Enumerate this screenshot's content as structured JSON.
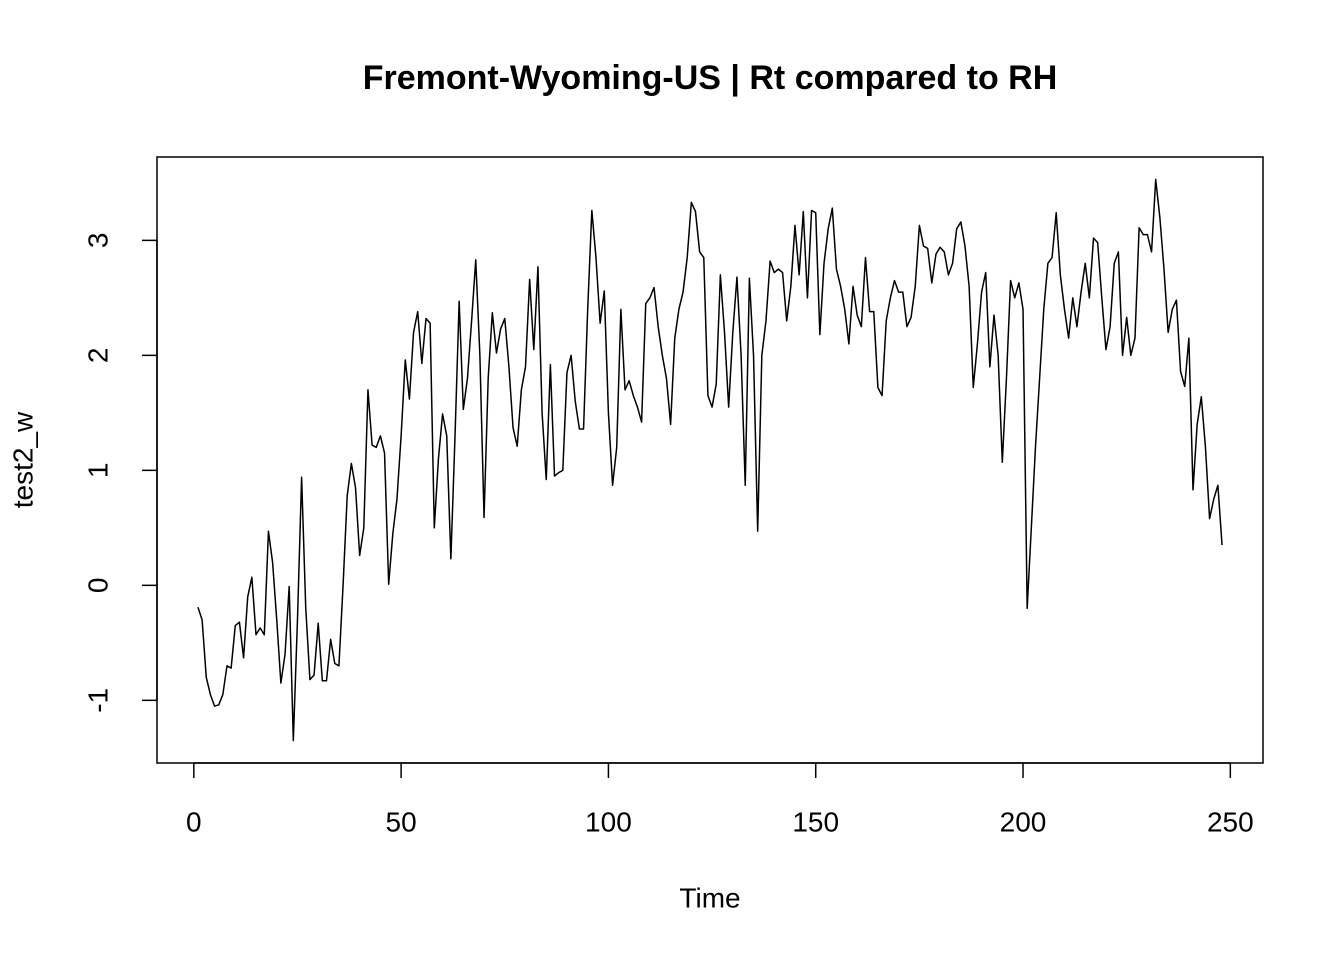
{
  "chart_data": {
    "type": "line",
    "title": "Fremont-Wyoming-US | Rt compared to RH",
    "x_label": "Time",
    "y_label": "test2_w",
    "x": [
      1,
      2,
      3,
      4,
      5,
      6,
      7,
      8,
      9,
      10,
      11,
      12,
      13,
      14,
      15,
      16,
      17,
      18,
      19,
      20,
      21,
      22,
      23,
      24,
      25,
      26,
      27,
      28,
      29,
      30,
      31,
      32,
      33,
      34,
      35,
      36,
      37,
      38,
      39,
      40,
      41,
      42,
      43,
      44,
      45,
      46,
      47,
      48,
      49,
      50,
      51,
      52,
      53,
      54,
      55,
      56,
      57,
      58,
      59,
      60,
      61,
      62,
      63,
      64,
      65,
      66,
      67,
      68,
      69,
      70,
      71,
      72,
      73,
      74,
      75,
      76,
      77,
      78,
      79,
      80,
      81,
      82,
      83,
      84,
      85,
      86,
      87,
      88,
      89,
      90,
      91,
      92,
      93,
      94,
      95,
      96,
      97,
      98,
      99,
      100,
      101,
      102,
      103,
      104,
      105,
      106,
      107,
      108,
      109,
      110,
      111,
      112,
      113,
      114,
      115,
      116,
      117,
      118,
      119,
      120,
      121,
      122,
      123,
      124,
      125,
      126,
      127,
      128,
      129,
      130,
      131,
      132,
      133,
      134,
      135,
      136,
      137,
      138,
      139,
      140,
      141,
      142,
      143,
      144,
      145,
      146,
      147,
      148,
      149,
      150,
      151,
      152,
      153,
      154,
      155,
      156,
      157,
      158,
      159,
      160,
      161,
      162,
      163,
      164,
      165,
      166,
      167,
      168,
      169,
      170,
      171,
      172,
      173,
      174,
      175,
      176,
      177,
      178,
      179,
      180,
      181,
      182,
      183,
      184,
      185,
      186,
      187,
      188,
      189,
      190,
      191,
      192,
      193,
      194,
      195,
      196,
      197,
      198,
      199,
      200,
      201,
      202,
      203,
      204,
      205,
      206,
      207,
      208,
      209,
      210,
      211,
      212,
      213,
      214,
      215,
      216,
      217,
      218,
      219,
      220,
      221,
      222,
      223,
      224,
      225,
      226,
      227,
      228,
      229,
      230,
      231,
      232,
      233,
      234,
      235,
      236,
      237,
      238,
      239,
      240,
      241,
      242,
      243,
      244,
      245,
      246,
      247,
      248
    ],
    "series": [
      {
        "name": "test2_w",
        "color": "#000000",
        "values": [
          -0.19,
          -0.3,
          -0.8,
          -0.95,
          -1.05,
          -1.04,
          -0.95,
          -0.7,
          -0.72,
          -0.35,
          -0.32,
          -0.63,
          -0.1,
          0.07,
          -0.43,
          -0.37,
          -0.43,
          0.47,
          0.2,
          -0.3,
          -0.85,
          -0.6,
          -0.01,
          -1.35,
          -0.3,
          0.94,
          -0.2,
          -0.82,
          -0.78,
          -0.33,
          -0.83,
          -0.83,
          -0.47,
          -0.68,
          -0.7,
          0.0,
          0.78,
          1.06,
          0.85,
          0.26,
          0.5,
          1.7,
          1.22,
          1.2,
          1.3,
          1.15,
          0.01,
          0.45,
          0.75,
          1.3,
          1.96,
          1.62,
          2.2,
          2.38,
          1.93,
          2.32,
          2.28,
          0.5,
          1.1,
          1.49,
          1.3,
          0.23,
          1.3,
          2.47,
          1.53,
          1.8,
          2.3,
          2.83,
          2.0,
          0.59,
          1.8,
          2.37,
          2.02,
          2.23,
          2.32,
          1.9,
          1.37,
          1.21,
          1.7,
          1.9,
          2.66,
          2.05,
          2.77,
          1.5,
          0.92,
          1.92,
          0.95,
          0.98,
          1.0,
          1.85,
          2.0,
          1.6,
          1.36,
          1.36,
          2.4,
          3.26,
          2.85,
          2.28,
          2.56,
          1.5,
          0.87,
          1.2,
          2.4,
          1.7,
          1.78,
          1.65,
          1.55,
          1.42,
          2.45,
          2.5,
          2.59,
          2.25,
          2.0,
          1.8,
          1.4,
          2.15,
          2.4,
          2.55,
          2.85,
          3.33,
          3.25,
          2.9,
          2.85,
          1.65,
          1.55,
          1.75,
          2.7,
          2.2,
          1.55,
          2.2,
          2.68,
          2.0,
          0.87,
          2.67,
          2.0,
          0.47,
          2.0,
          2.3,
          2.82,
          2.72,
          2.75,
          2.72,
          2.3,
          2.6,
          3.13,
          2.7,
          3.25,
          2.5,
          3.26,
          3.24,
          2.18,
          2.8,
          3.1,
          3.28,
          2.75,
          2.6,
          2.4,
          2.1,
          2.6,
          2.35,
          2.25,
          2.85,
          2.38,
          2.38,
          1.72,
          1.65,
          2.3,
          2.5,
          2.65,
          2.55,
          2.55,
          2.25,
          2.33,
          2.6,
          3.13,
          2.95,
          2.93,
          2.63,
          2.88,
          2.94,
          2.9,
          2.7,
          2.8,
          3.1,
          3.16,
          2.95,
          2.6,
          1.72,
          2.1,
          2.55,
          2.72,
          1.9,
          2.35,
          2.0,
          1.07,
          1.8,
          2.65,
          2.5,
          2.63,
          2.4,
          -0.2,
          0.5,
          1.2,
          1.8,
          2.4,
          2.8,
          2.85,
          3.24,
          2.7,
          2.4,
          2.15,
          2.5,
          2.25,
          2.55,
          2.8,
          2.5,
          3.02,
          2.98,
          2.5,
          2.05,
          2.25,
          2.8,
          2.9,
          2.0,
          2.33,
          2.0,
          2.15,
          3.11,
          3.05,
          3.05,
          2.9,
          3.53,
          3.2,
          2.75,
          2.2,
          2.4,
          2.48,
          1.86,
          1.73,
          2.15,
          0.83,
          1.4,
          1.64,
          1.2,
          0.58,
          0.75,
          0.87,
          0.35
        ]
      }
    ],
    "xlim": [
      -8.88,
      257.88
    ],
    "xticks": [
      0,
      50,
      100,
      150,
      200,
      250
    ],
    "ylim": [
      -1.545,
      3.725
    ],
    "yticks": [
      -1,
      0,
      1,
      2,
      3
    ]
  }
}
